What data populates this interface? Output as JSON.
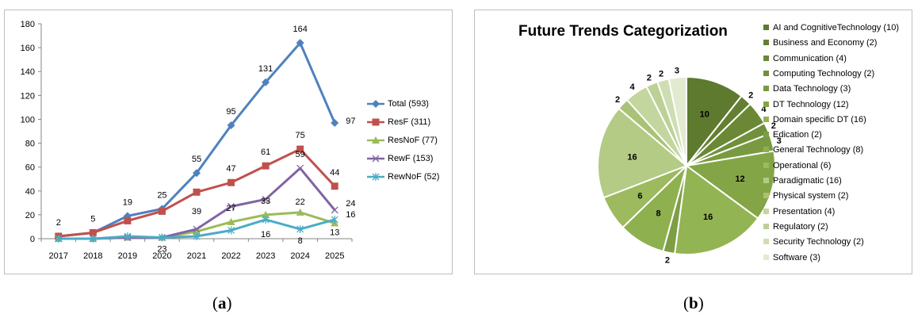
{
  "captions": {
    "a": "a",
    "b": "b"
  },
  "chart_data": [
    {
      "type": "line",
      "x": [
        "2017",
        "2018",
        "2019",
        "2020",
        "2021",
        "2022",
        "2023",
        "2024",
        "2025"
      ],
      "ylim": [
        0,
        180
      ],
      "yticks": [
        0,
        20,
        40,
        60,
        80,
        100,
        120,
        140,
        160,
        180
      ],
      "grid": false,
      "legend_position": "right",
      "series": [
        {
          "name": "Total (593)",
          "color": "#4f81bd",
          "marker": "diamond",
          "values": [
            2,
            5,
            19,
            25,
            55,
            95,
            131,
            164,
            97
          ]
        },
        {
          "name": "ResF (311)",
          "color": "#c0504d",
          "marker": "square",
          "values": [
            2,
            5,
            15,
            23,
            39,
            47,
            61,
            75,
            44
          ]
        },
        {
          "name": "ResNoF (77)",
          "color": "#9bbb59",
          "marker": "triangle",
          "values": [
            0,
            0,
            1,
            1,
            6,
            14,
            20,
            22,
            13
          ]
        },
        {
          "name": "RewF (153)",
          "color": "#8064a2",
          "marker": "x",
          "values": [
            0,
            0,
            1,
            1,
            8,
            27,
            33,
            59,
            24
          ]
        },
        {
          "name": "RewNoF (52)",
          "color": "#4bacc6",
          "marker": "star",
          "values": [
            0,
            0,
            2,
            1,
            2,
            7,
            16,
            8,
            16
          ]
        }
      ],
      "data_labels": [
        {
          "x": "2017",
          "text": "2"
        },
        {
          "x": "2018",
          "text": "5"
        },
        {
          "x": "2019",
          "text": "19"
        },
        {
          "x": "2020",
          "text": "25"
        },
        {
          "x": "2020",
          "text": "23"
        },
        {
          "x": "2021",
          "text": "55"
        },
        {
          "x": "2021",
          "text": "39"
        },
        {
          "x": "2022",
          "text": "95"
        },
        {
          "x": "2022",
          "text": "47"
        },
        {
          "x": "2022",
          "text": "27"
        },
        {
          "x": "2023",
          "text": "131"
        },
        {
          "x": "2023",
          "text": "61"
        },
        {
          "x": "2023",
          "text": "33"
        },
        {
          "x": "2023",
          "text": "16"
        },
        {
          "x": "2024",
          "text": "164"
        },
        {
          "x": "2024",
          "text": "75"
        },
        {
          "x": "2024",
          "text": "59"
        },
        {
          "x": "2024",
          "text": "22"
        },
        {
          "x": "2024",
          "text": "8"
        },
        {
          "x": "2025",
          "text": "97"
        },
        {
          "x": "2025",
          "text": "44"
        },
        {
          "x": "2025",
          "text": "24"
        },
        {
          "x": "2025",
          "text": "16"
        },
        {
          "x": "2025",
          "text": "13"
        }
      ]
    },
    {
      "type": "pie",
      "title": "Future Trends Categorization",
      "legend_position": "right",
      "slices": [
        {
          "label": "AI and CognitiveTechnology (10)",
          "value": 10,
          "color": "#5e7a2e"
        },
        {
          "label": "Business and Economy (2)",
          "value": 2,
          "color": "#637f32"
        },
        {
          "label": "Communication (4)",
          "value": 4,
          "color": "#6a8836"
        },
        {
          "label": "Computing Technology (2)",
          "value": 2,
          "color": "#71903b"
        },
        {
          "label": "Data Technology (3)",
          "value": 3,
          "color": "#799a40"
        },
        {
          "label": "DT Technology (12)",
          "value": 12,
          "color": "#84a546"
        },
        {
          "label": "Domain specific DT (16)",
          "value": 16,
          "color": "#93b453"
        },
        {
          "label": "Edication (2)",
          "value": 2,
          "color": "#7d9e44"
        },
        {
          "label": "General Technology (8)",
          "value": 8,
          "color": "#8fb04e"
        },
        {
          "label": "Operational (6)",
          "value": 6,
          "color": "#9dba5f"
        },
        {
          "label": "Paradigmatic (16)",
          "value": 16,
          "color": "#b3cb85"
        },
        {
          "label": "Physical system (2)",
          "value": 2,
          "color": "#a9c275"
        },
        {
          "label": "Presentation (4)",
          "value": 4,
          "color": "#c3d69e"
        },
        {
          "label": "Regulatory (2)",
          "value": 2,
          "color": "#bdd196"
        },
        {
          "label": "Security Technology (2)",
          "value": 2,
          "color": "#cfdeb2"
        },
        {
          "label": "Software (3)",
          "value": 3,
          "color": "#e2ebd0"
        }
      ],
      "slice_labels": [
        "10",
        "2",
        "4",
        "2",
        "3",
        "12",
        "16",
        "2",
        "8",
        "6",
        "16",
        "2",
        "4",
        "2",
        "2",
        "3"
      ]
    }
  ]
}
